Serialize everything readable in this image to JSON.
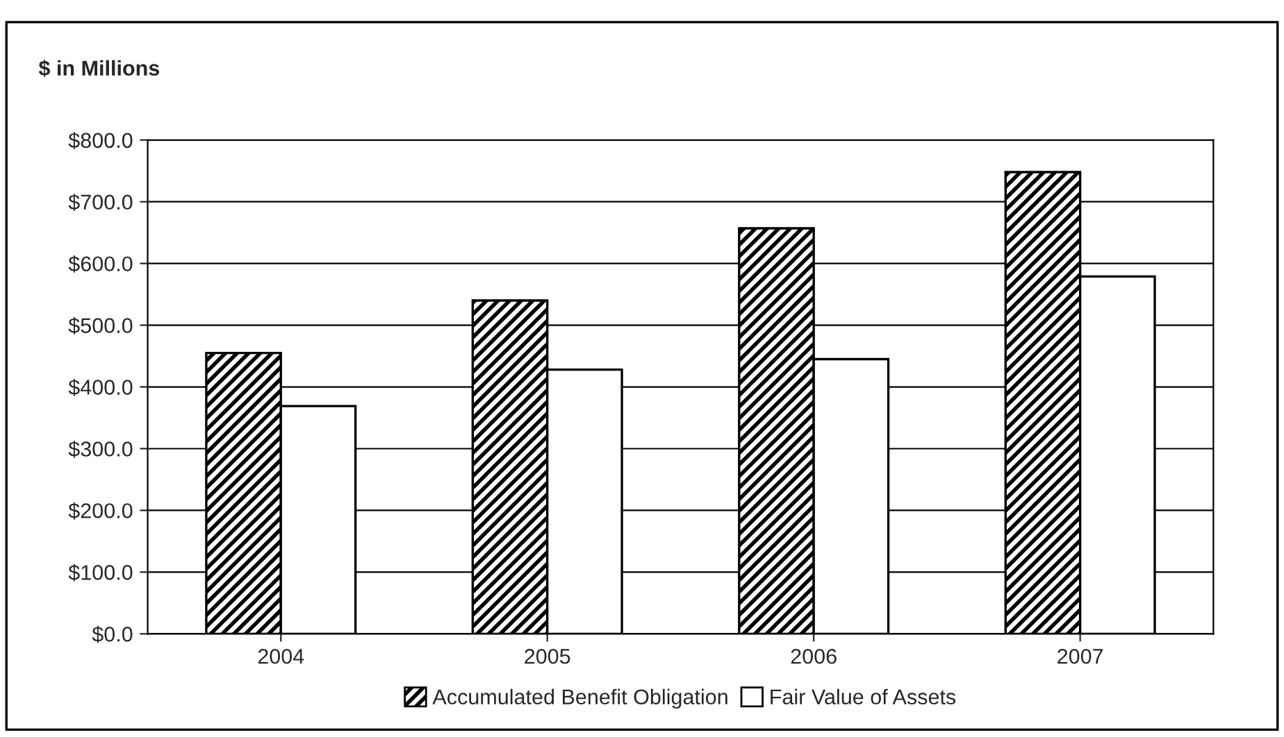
{
  "chart_data": {
    "type": "bar",
    "title": "$ in Millions",
    "categories": [
      "2004",
      "2005",
      "2006",
      "2007"
    ],
    "series": [
      {
        "name": "Accumulated Benefit Obligation",
        "color": "#000000",
        "values": [
          455,
          540,
          657,
          748
        ]
      },
      {
        "name": "Fair Value of Assets",
        "color": "#ffffff",
        "values": [
          369,
          428,
          445,
          579
        ]
      }
    ],
    "ylim": [
      0,
      800
    ],
    "yticks": [
      {
        "value": 0,
        "label": "$0.0"
      },
      {
        "value": 100,
        "label": "$100.0"
      },
      {
        "value": 200,
        "label": "$200.0"
      },
      {
        "value": 300,
        "label": "$300.0"
      },
      {
        "value": 400,
        "label": "$400.0"
      },
      {
        "value": 500,
        "label": "$500.0"
      },
      {
        "value": 600,
        "label": "$600.0"
      },
      {
        "value": 700,
        "label": "$700.0"
      },
      {
        "value": 800,
        "label": "$800.0"
      }
    ],
    "grid": "y",
    "legend": "bottom"
  }
}
